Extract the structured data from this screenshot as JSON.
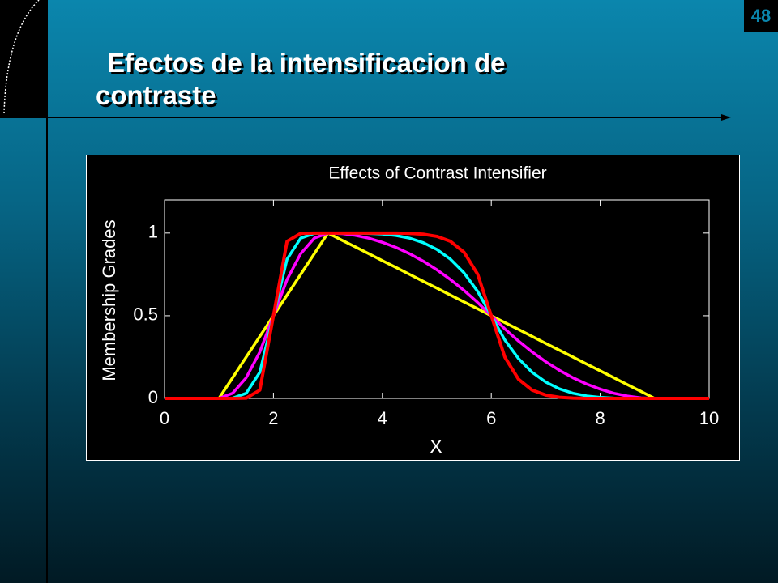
{
  "slide": {
    "title": "Efectos de la intensificacion de contraste",
    "page_number": "48"
  },
  "chart_data": {
    "type": "line",
    "title": "Effects of Contrast Intensifier",
    "xlabel": "X",
    "ylabel": "Membership Grades",
    "x": [
      0,
      0.25,
      0.5,
      0.75,
      1,
      1.25,
      1.5,
      1.75,
      2,
      2.25,
      2.5,
      2.75,
      3,
      3.25,
      3.5,
      3.75,
      4,
      4.25,
      4.5,
      4.75,
      5,
      5.25,
      5.5,
      5.75,
      6,
      6.25,
      6.5,
      6.75,
      7,
      7.25,
      7.5,
      7.75,
      8,
      8.25,
      8.5,
      8.75,
      9,
      9.25,
      9.5,
      9.75,
      10
    ],
    "series": [
      {
        "color": "#ffff00",
        "values": [
          0,
          0,
          0,
          0,
          0,
          0.125,
          0.25,
          0.375,
          0.5,
          0.625,
          0.75,
          0.875,
          1,
          0.958,
          0.917,
          0.875,
          0.833,
          0.792,
          0.75,
          0.708,
          0.667,
          0.625,
          0.583,
          0.542,
          0.5,
          0.458,
          0.417,
          0.375,
          0.333,
          0.292,
          0.25,
          0.208,
          0.167,
          0.125,
          0.083,
          0.042,
          0,
          0,
          0,
          0,
          0
        ]
      },
      {
        "color": "#ff00ff",
        "values": [
          0,
          0,
          0,
          0,
          0,
          0.031,
          0.125,
          0.281,
          0.5,
          0.719,
          0.875,
          0.969,
          1,
          0.997,
          0.986,
          0.969,
          0.944,
          0.913,
          0.875,
          0.83,
          0.778,
          0.719,
          0.653,
          0.58,
          0.5,
          0.42,
          0.347,
          0.281,
          0.222,
          0.17,
          0.125,
          0.087,
          0.056,
          0.031,
          0.014,
          0.003,
          0,
          0,
          0,
          0,
          0
        ]
      },
      {
        "color": "#00ffff",
        "values": [
          0,
          0,
          0,
          0,
          0,
          0.002,
          0.031,
          0.158,
          0.5,
          0.842,
          0.969,
          0.998,
          1,
          1,
          1,
          0.998,
          0.994,
          0.985,
          0.969,
          0.942,
          0.901,
          0.842,
          0.759,
          0.647,
          0.5,
          0.353,
          0.241,
          0.158,
          0.099,
          0.058,
          0.031,
          0.015,
          0.006,
          0.002,
          0,
          0,
          0,
          0,
          0,
          0,
          0
        ]
      },
      {
        "color": "#ff0000",
        "values": [
          0,
          0,
          0,
          0,
          0,
          0,
          0.002,
          0.05,
          0.5,
          0.95,
          0.998,
          1,
          1,
          1,
          1,
          1,
          1,
          1,
          0.998,
          0.993,
          0.98,
          0.95,
          0.884,
          0.751,
          0.5,
          0.249,
          0.116,
          0.05,
          0.02,
          0.007,
          0.002,
          0,
          0,
          0,
          0,
          0,
          0,
          0,
          0,
          0,
          0
        ]
      }
    ],
    "xlim": [
      0,
      10
    ],
    "ylim": [
      0,
      1.2
    ],
    "xticks": [
      0,
      2,
      4,
      6,
      8,
      10
    ],
    "yticks": [
      0,
      0.5,
      1
    ]
  }
}
